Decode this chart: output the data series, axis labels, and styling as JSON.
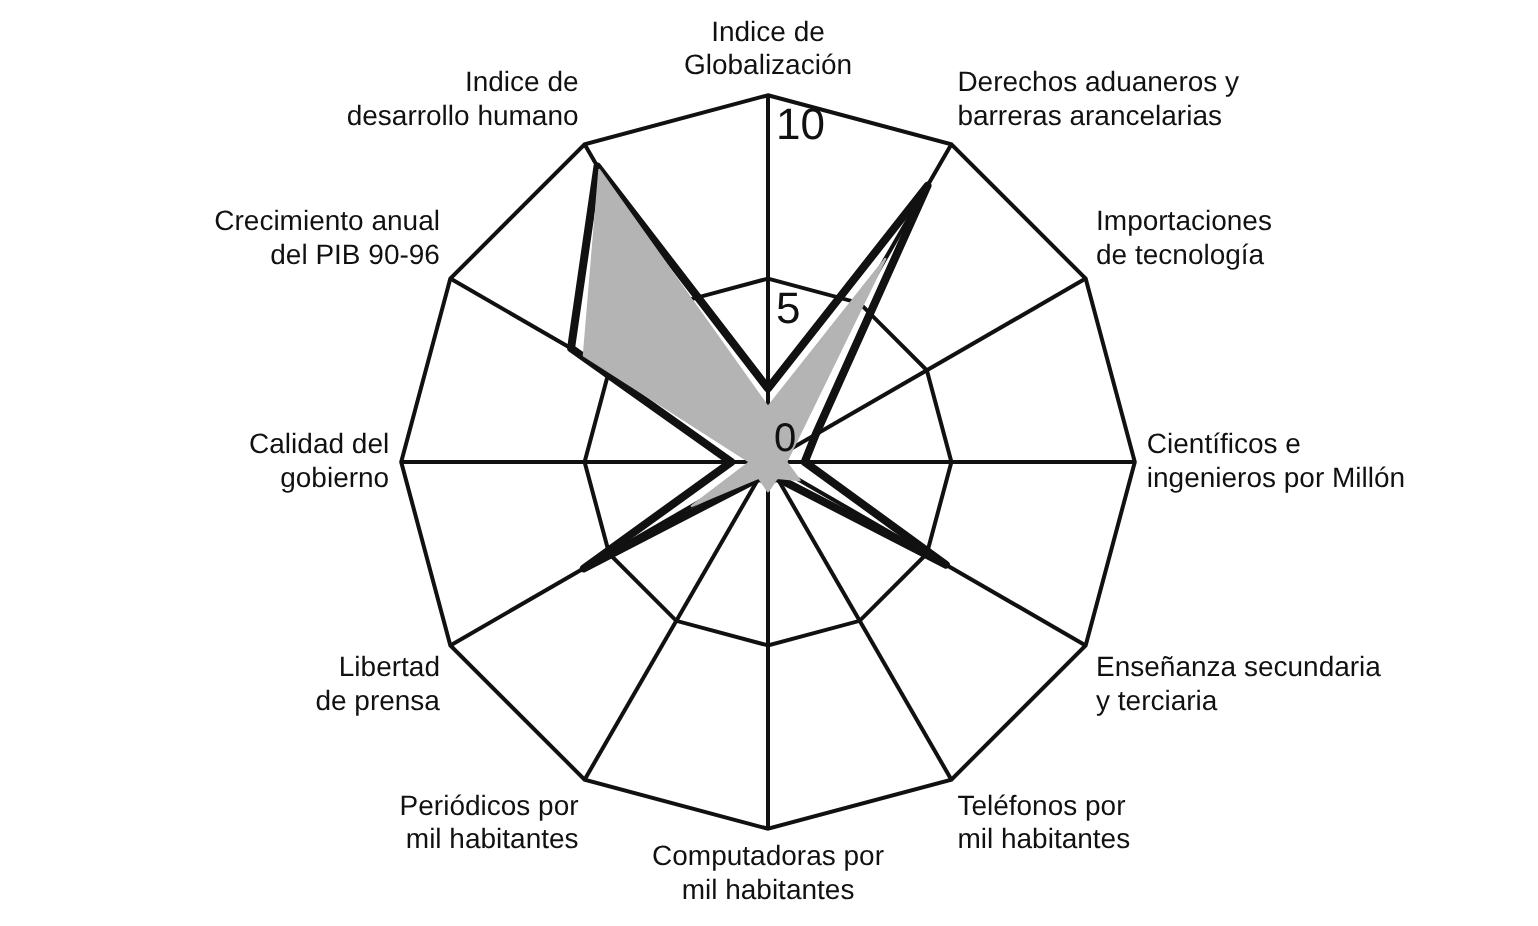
{
  "chart_data": {
    "type": "radar",
    "categories": [
      "Indice de Globalización",
      "Derechos aduaneros y barreras arancelarias",
      "Importaciones de tecnología",
      "Científicos e ingenieros por Millón",
      "Enseñanza secundaria y terciaria",
      "Teléfonos por mil habitantes",
      "Computadoras por mil habitantes",
      "Periódicos por mil habitantes",
      "Libertad de prensa",
      "Calidad del gobierno",
      "Crecimiento anual del PIB 90-96",
      "Indice de desarrollo humano"
    ],
    "series": [
      {
        "color": "#b4b4b4",
        "values": [
          1.5,
          6.4,
          0.8,
          0.5,
          1,
          0.5,
          0.8,
          0.5,
          2.4,
          0.5,
          5.8,
          9.2
        ]
      },
      {
        "color": "#111111",
        "values": [
          2,
          8.7,
          1.5,
          1,
          5.6,
          0.5,
          0.5,
          0.5,
          5.8,
          1,
          6.2,
          9.3
        ]
      }
    ],
    "ylim": [
      0,
      10
    ],
    "yticks": [
      0,
      5,
      10
    ],
    "grid": true,
    "legend": false
  }
}
